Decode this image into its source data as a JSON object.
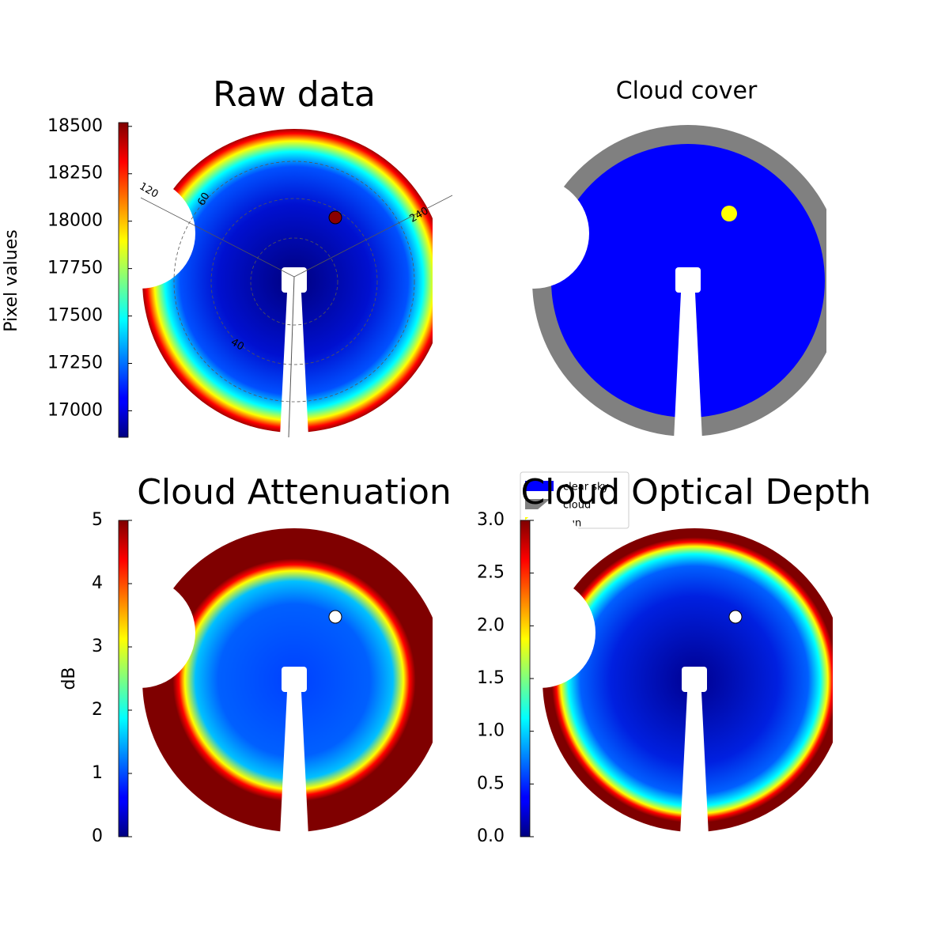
{
  "chart_data": [
    {
      "type": "image",
      "title": "Raw data",
      "colormap": "jet",
      "style": "raw",
      "annotations": [
        "120",
        "60",
        "240",
        "40"
      ],
      "colorbar": {
        "label": "Pixel values",
        "ylim": [
          16860,
          18520
        ],
        "yticks": [
          17000,
          17250,
          17500,
          17750,
          18000,
          18250,
          18500
        ]
      }
    },
    {
      "type": "image",
      "title": "Cloud cover",
      "style": "mask",
      "series": [
        {
          "name": "clear sky",
          "color": "#0000ff"
        },
        {
          "name": "cloud",
          "color": "#808080"
        },
        {
          "name": "sun",
          "color": "#ffff00"
        }
      ]
    },
    {
      "type": "image",
      "title": "Cloud Attenuation",
      "colormap": "jet",
      "style": "attenuation",
      "colorbar": {
        "label": "dB",
        "ylim": [
          0,
          5
        ],
        "yticks": [
          0,
          1,
          2,
          3,
          4,
          5
        ]
      }
    },
    {
      "type": "image",
      "title": "Cloud Optical Depth",
      "colormap": "jet",
      "style": "depth",
      "colorbar": {
        "ylim": [
          0,
          3
        ],
        "yticks": [
          {
            "value": 0,
            "label": "0.0"
          },
          {
            "value": 0.5,
            "label": "0.5"
          },
          {
            "value": 1,
            "label": "1.0"
          },
          {
            "value": 1.5,
            "label": "1.5"
          },
          {
            "value": 2,
            "label": "2.0"
          },
          {
            "value": 2.5,
            "label": "2.5"
          },
          {
            "value": 3,
            "label": "3.0"
          }
        ]
      }
    }
  ]
}
